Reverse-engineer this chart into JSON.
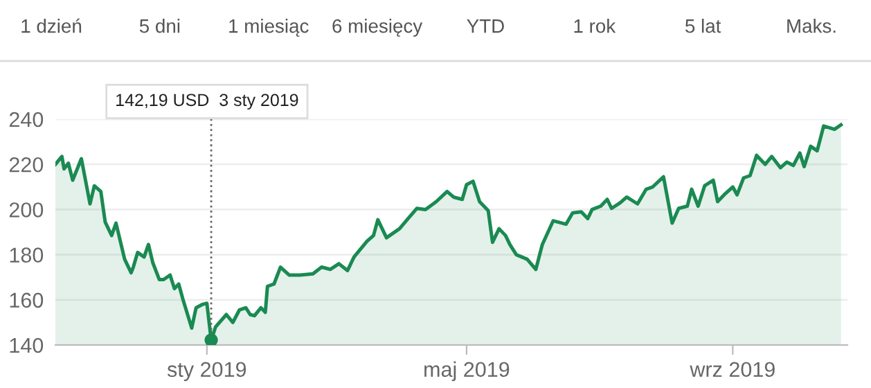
{
  "chart_data": {
    "type": "area",
    "annotations": [
      "1 dzień",
      "5 dni",
      "1 miesiąc",
      "6 miesięcy",
      "YTD",
      "1 rok",
      "5 lat",
      "Maks.",
      {
        "text": "142,19 USD  3 sty 2019",
        "x": "2019-01-03",
        "y": 142.19
      }
    ],
    "x": [
      "2018-10-23",
      "2018-10-26",
      "2018-10-27",
      "2018-10-29",
      "2018-10-31",
      "2018-11-04",
      "2018-11-08",
      "2018-11-10",
      "2018-11-13",
      "2018-11-15",
      "2018-11-18",
      "2018-11-20",
      "2018-11-24",
      "2018-11-27",
      "2018-11-28",
      "2018-11-30",
      "2018-12-03",
      "2018-12-05",
      "2018-12-07",
      "2018-12-10",
      "2018-12-12",
      "2018-12-15",
      "2018-12-17",
      "2018-12-19",
      "2018-12-21",
      "2018-12-25",
      "2018-12-27",
      "2018-12-30",
      "2019-01-01",
      "2019-01-03",
      "2019-01-05",
      "2019-01-10",
      "2019-01-13",
      "2019-01-16",
      "2019-01-19",
      "2019-01-21",
      "2019-01-23",
      "2019-01-26",
      "2019-01-28",
      "2019-01-29",
      "2019-02-01",
      "2019-02-04",
      "2019-02-08",
      "2019-02-13",
      "2019-02-19",
      "2019-02-23",
      "2019-02-27",
      "2019-03-03",
      "2019-03-07",
      "2019-03-10",
      "2019-03-16",
      "2019-03-19",
      "2019-03-21",
      "2019-03-25",
      "2019-03-31",
      "2019-04-04",
      "2019-04-08",
      "2019-04-12",
      "2019-04-17",
      "2019-04-22",
      "2019-04-25",
      "2019-04-29",
      "2019-05-01",
      "2019-05-04",
      "2019-05-07",
      "2019-05-11",
      "2019-05-13",
      "2019-05-16",
      "2019-05-19",
      "2019-05-21",
      "2019-05-24",
      "2019-05-29",
      "2019-06-02",
      "2019-06-05",
      "2019-06-10",
      "2019-06-16",
      "2019-06-19",
      "2019-06-23",
      "2019-06-26",
      "2019-06-28",
      "2019-07-02",
      "2019-07-05",
      "2019-07-07",
      "2019-07-11",
      "2019-07-14",
      "2019-07-19",
      "2019-07-23",
      "2019-07-26",
      "2019-07-31",
      "2019-08-04",
      "2019-08-07",
      "2019-08-11",
      "2019-08-13",
      "2019-08-16",
      "2019-08-19",
      "2019-08-23",
      "2019-08-25",
      "2019-08-28",
      "2019-09-01",
      "2019-09-03",
      "2019-09-06",
      "2019-09-09",
      "2019-09-12",
      "2019-09-16",
      "2019-09-19",
      "2019-09-23",
      "2019-09-26",
      "2019-09-29",
      "2019-10-02",
      "2019-10-04",
      "2019-10-07",
      "2019-10-10",
      "2019-10-13",
      "2019-10-18",
      "2019-10-21"
    ],
    "series": [
      {
        "color": "#1a8a52",
        "values": [
          220,
          223.5,
          218,
          220.5,
          213,
          222.5,
          202.5,
          210.5,
          208,
          194.5,
          188.5,
          194,
          178,
          172,
          174.5,
          181,
          179,
          184.5,
          176.5,
          169,
          169,
          171,
          165,
          167,
          160,
          147.5,
          156.5,
          158,
          158.5,
          142.19,
          148,
          153.5,
          150,
          155.5,
          156.5,
          153.5,
          153,
          156.5,
          154.5,
          166,
          167,
          174.5,
          171,
          171,
          171.5,
          174.5,
          173.5,
          176,
          173,
          179,
          186,
          188.5,
          195.5,
          187.5,
          191.5,
          196,
          200.5,
          200,
          203.5,
          208,
          205.5,
          204.5,
          211,
          212.5,
          203.5,
          199.5,
          185.5,
          191.5,
          188.5,
          184.5,
          180,
          178,
          173.5,
          184.5,
          195,
          193.5,
          198.5,
          199,
          196,
          200,
          201.5,
          204.5,
          200.5,
          203,
          205.5,
          202.5,
          209,
          210,
          214.5,
          194,
          200.5,
          201.5,
          209,
          201.5,
          210.5,
          213,
          203.5,
          206.5,
          210,
          206.5,
          214,
          215,
          224,
          220,
          223.5,
          218.5,
          221,
          219.5,
          225,
          219,
          228,
          226,
          237,
          235.5,
          237.5
        ]
      }
    ],
    "xlim": [
      "2018-10-23",
      "2019-10-24"
    ],
    "ylim": [
      140,
      240
    ],
    "yticks": [
      140,
      160,
      180,
      200,
      220,
      240
    ],
    "xticks": [
      {
        "value": "2019-01-01",
        "label": "sty 2019"
      },
      {
        "value": "2019-05-01",
        "label": "maj 2019"
      },
      {
        "value": "2019-09-01",
        "label": "wrz 2019"
      }
    ],
    "grid": "y",
    "marker": "none",
    "line_style": "solid"
  }
}
